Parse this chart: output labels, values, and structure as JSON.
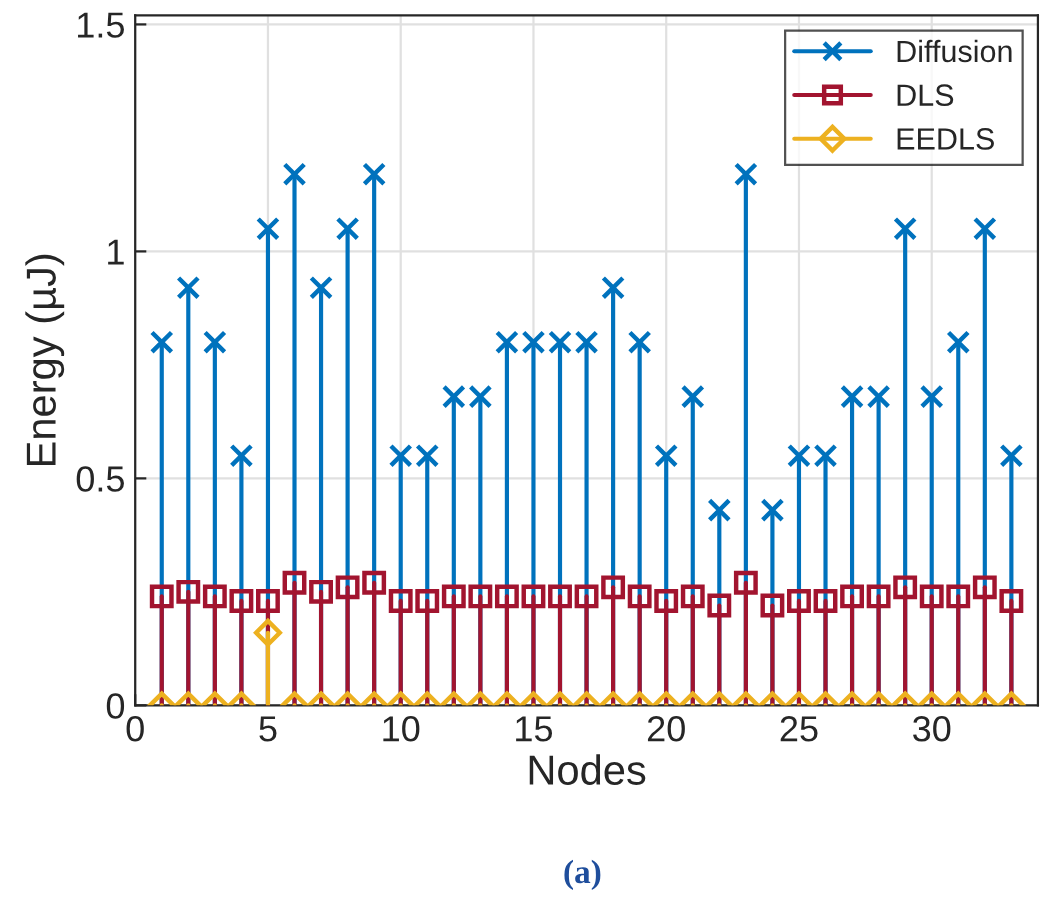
{
  "chart_data": {
    "type": "lollipop",
    "xlabel": "Nodes",
    "ylabel": "Energy (µJ)",
    "x": [
      1,
      2,
      3,
      4,
      5,
      6,
      7,
      8,
      9,
      10,
      11,
      12,
      13,
      14,
      15,
      16,
      17,
      18,
      19,
      20,
      21,
      22,
      23,
      24,
      25,
      26,
      27,
      28,
      29,
      30,
      31,
      32,
      33
    ],
    "series": [
      {
        "name": "Diffusion",
        "color": "#0072bd",
        "marker": "cross",
        "values": [
          0.8,
          0.92,
          0.8,
          0.55,
          1.05,
          1.17,
          0.92,
          1.05,
          1.17,
          0.55,
          0.55,
          0.68,
          0.68,
          0.8,
          0.8,
          0.8,
          0.8,
          0.92,
          0.8,
          0.55,
          0.68,
          0.43,
          1.17,
          0.43,
          0.55,
          0.55,
          0.68,
          0.68,
          1.05,
          0.68,
          0.8,
          1.05,
          0.55
        ]
      },
      {
        "name": "DLS",
        "color": "#a2142f",
        "marker": "square",
        "values": [
          0.24,
          0.25,
          0.24,
          0.23,
          0.23,
          0.27,
          0.25,
          0.26,
          0.27,
          0.23,
          0.23,
          0.24,
          0.24,
          0.24,
          0.24,
          0.24,
          0.24,
          0.26,
          0.24,
          0.23,
          0.24,
          0.22,
          0.27,
          0.22,
          0.23,
          0.23,
          0.24,
          0.24,
          0.26,
          0.24,
          0.24,
          0.26,
          0.23
        ]
      },
      {
        "name": "EEDLS",
        "color": "#edb120",
        "marker": "diamond",
        "values": [
          0,
          0,
          0,
          0,
          0.16,
          0,
          0,
          0,
          0,
          0,
          0,
          0,
          0,
          0,
          0,
          0,
          0,
          0,
          0,
          0,
          0,
          0,
          0,
          0,
          0,
          0,
          0,
          0,
          0,
          0,
          0,
          0,
          0
        ]
      }
    ],
    "xlim": [
      0,
      34
    ],
    "ylim": [
      0,
      1.52
    ],
    "xticks": [
      0,
      5,
      10,
      15,
      20,
      25,
      30
    ],
    "yticks": [
      0,
      0.5,
      1,
      1.5
    ],
    "grid": true,
    "legend": "top right",
    "annotations": [
      "(a)"
    ]
  }
}
